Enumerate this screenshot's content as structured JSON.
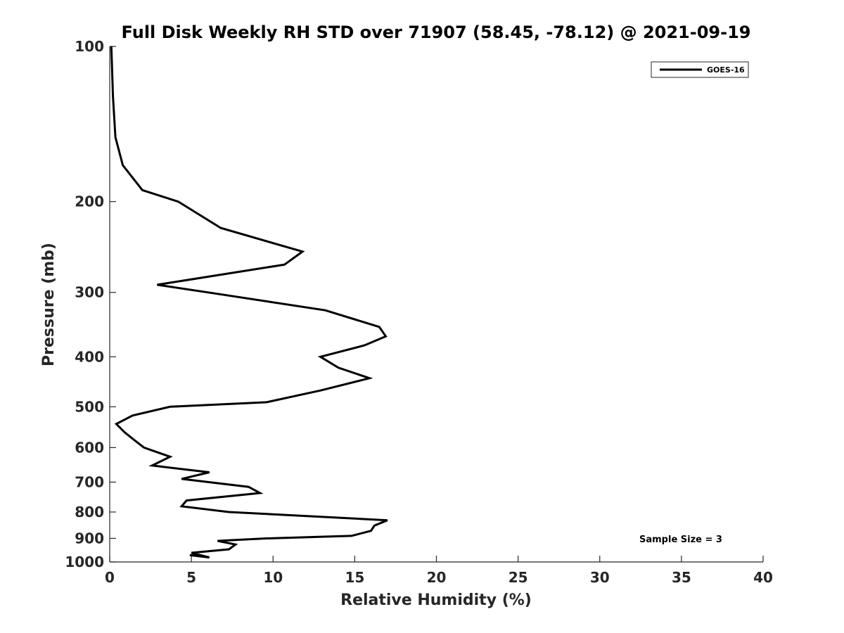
{
  "chart_data": {
    "type": "line",
    "title": "Full Disk Weekly RH STD over 71907 (58.45, -78.12) @ 2021-09-19",
    "xlabel": "Relative Humidity (%)",
    "ylabel": "Pressure (mb)",
    "xlim": [
      0,
      40
    ],
    "ylim": [
      100,
      1000
    ],
    "y_scale": "log",
    "y_reversed": true,
    "x_ticks": [
      0,
      5,
      10,
      15,
      20,
      25,
      30,
      35,
      40
    ],
    "y_ticks": [
      100,
      200,
      300,
      400,
      500,
      600,
      700,
      800,
      900,
      1000
    ],
    "grid": false,
    "legend_position": "top-right",
    "annotation": "Sample Size = 3",
    "series": [
      {
        "name": "GOES-16",
        "color": "#000000",
        "points": [
          [
            0.1,
            100
          ],
          [
            0.2,
            125
          ],
          [
            0.35,
            150
          ],
          [
            0.8,
            170
          ],
          [
            2.0,
            190
          ],
          [
            4.2,
            200
          ],
          [
            6.8,
            225
          ],
          [
            11.8,
            250
          ],
          [
            10.7,
            265
          ],
          [
            2.9,
            290
          ],
          [
            6.0,
            300
          ],
          [
            13.2,
            325
          ],
          [
            16.5,
            350
          ],
          [
            16.9,
            365
          ],
          [
            15.6,
            380
          ],
          [
            12.9,
            400
          ],
          [
            14.0,
            420
          ],
          [
            15.9,
            440
          ],
          [
            12.9,
            465
          ],
          [
            9.6,
            490
          ],
          [
            3.7,
            500
          ],
          [
            1.4,
            520
          ],
          [
            0.4,
            540
          ],
          [
            0.9,
            560
          ],
          [
            1.5,
            580
          ],
          [
            2.1,
            600
          ],
          [
            3.7,
            625
          ],
          [
            2.6,
            650
          ],
          [
            6.1,
            670
          ],
          [
            4.4,
            690
          ],
          [
            8.5,
            715
          ],
          [
            9.2,
            735
          ],
          [
            4.7,
            760
          ],
          [
            4.4,
            780
          ],
          [
            7.3,
            800
          ],
          [
            17.0,
            830
          ],
          [
            16.2,
            850
          ],
          [
            16.0,
            870
          ],
          [
            14.8,
            890
          ],
          [
            9.6,
            900
          ],
          [
            6.6,
            910
          ],
          [
            7.7,
            925
          ],
          [
            7.3,
            945
          ],
          [
            5.0,
            960
          ],
          [
            6.1,
            980
          ],
          [
            4.9,
            970
          ]
        ]
      }
    ]
  }
}
